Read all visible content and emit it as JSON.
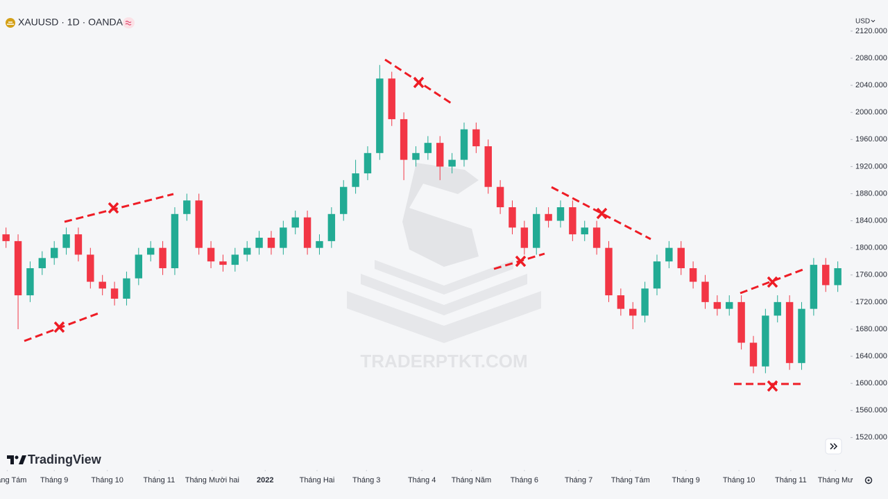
{
  "chart_data": {
    "type": "candlestick",
    "title": "XAUUSD · 1D · OANDA",
    "currency": "USD",
    "brand": "TradingView",
    "watermark": "TRADERPTKT.COM",
    "up_color": "#22ab94",
    "down_color": "#f23645",
    "x": [
      0,
      1,
      2,
      3,
      4,
      5,
      6,
      7,
      8,
      9,
      10,
      11,
      12,
      13,
      14,
      15,
      16,
      17,
      18,
      19,
      20,
      21,
      22,
      23,
      24,
      25,
      26,
      27,
      28,
      29,
      30,
      31,
      32,
      33,
      34,
      35,
      36,
      37,
      38,
      39,
      40,
      41,
      42,
      43,
      44,
      45,
      46,
      47,
      48,
      49,
      50,
      51,
      52,
      53,
      54,
      55,
      56,
      57,
      58,
      59,
      60,
      61,
      62,
      63,
      64,
      65,
      66,
      67,
      68,
      69
    ],
    "open": [
      1820,
      1810,
      1730,
      1770,
      1785,
      1800,
      1820,
      1790,
      1750,
      1740,
      1725,
      1755,
      1790,
      1800,
      1770,
      1850,
      1870,
      1800,
      1780,
      1775,
      1790,
      1800,
      1815,
      1800,
      1830,
      1845,
      1800,
      1810,
      1850,
      1890,
      1910,
      1940,
      2050,
      1990,
      1930,
      1940,
      1955,
      1920,
      1930,
      1975,
      1950,
      1890,
      1860,
      1830,
      1800,
      1850,
      1840,
      1860,
      1820,
      1830,
      1800,
      1730,
      1710,
      1700,
      1740,
      1780,
      1800,
      1770,
      1750,
      1720,
      1710,
      1720,
      1660,
      1625,
      1700,
      1720,
      1630,
      1710,
      1775,
      1745
    ],
    "high": [
      1830,
      1820,
      1780,
      1795,
      1810,
      1830,
      1830,
      1800,
      1760,
      1750,
      1765,
      1800,
      1810,
      1810,
      1860,
      1880,
      1880,
      1810,
      1790,
      1800,
      1810,
      1825,
      1825,
      1840,
      1855,
      1855,
      1820,
      1860,
      1900,
      1930,
      1950,
      2070,
      2060,
      2000,
      1950,
      1965,
      1965,
      1940,
      1985,
      1985,
      1960,
      1900,
      1870,
      1840,
      1860,
      1860,
      1870,
      1870,
      1840,
      1840,
      1810,
      1740,
      1720,
      1750,
      1790,
      1810,
      1810,
      1780,
      1760,
      1730,
      1730,
      1730,
      1670,
      1710,
      1730,
      1730,
      1720,
      1785,
      1785,
      1780
    ],
    "low": [
      1800,
      1680,
      1720,
      1760,
      1775,
      1790,
      1780,
      1740,
      1730,
      1715,
      1715,
      1745,
      1780,
      1760,
      1760,
      1840,
      1790,
      1770,
      1765,
      1765,
      1780,
      1790,
      1790,
      1790,
      1820,
      1790,
      1790,
      1800,
      1840,
      1880,
      1900,
      1930,
      1980,
      1900,
      1920,
      1930,
      1900,
      1910,
      1920,
      1940,
      1880,
      1850,
      1820,
      1790,
      1790,
      1830,
      1830,
      1810,
      1810,
      1790,
      1720,
      1700,
      1680,
      1690,
      1730,
      1770,
      1760,
      1740,
      1710,
      1700,
      1700,
      1650,
      1615,
      1615,
      1690,
      1620,
      1620,
      1700,
      1735,
      1735
    ],
    "close": [
      1810,
      1730,
      1770,
      1785,
      1800,
      1820,
      1790,
      1750,
      1740,
      1725,
      1755,
      1790,
      1800,
      1770,
      1850,
      1870,
      1800,
      1780,
      1775,
      1790,
      1800,
      1815,
      1800,
      1830,
      1845,
      1800,
      1810,
      1850,
      1890,
      1910,
      1940,
      2050,
      1990,
      1930,
      1940,
      1955,
      1920,
      1930,
      1975,
      1950,
      1890,
      1860,
      1830,
      1800,
      1850,
      1840,
      1860,
      1820,
      1830,
      1800,
      1730,
      1710,
      1700,
      1740,
      1780,
      1800,
      1770,
      1750,
      1720,
      1710,
      1720,
      1660,
      1625,
      1700,
      1720,
      1630,
      1710,
      1775,
      1745,
      1770
    ],
    "xlim": [
      -0.5,
      70
    ],
    "xticks": [
      {
        "value": 0.1,
        "label": "Tháng Tám"
      },
      {
        "value": 4.0,
        "label": "Tháng 9"
      },
      {
        "value": 8.4,
        "label": "Tháng 10"
      },
      {
        "value": 12.7,
        "label": "Tháng 11"
      },
      {
        "value": 17.1,
        "label": "Tháng Mười hai"
      },
      {
        "value": 21.5,
        "label": "2022"
      },
      {
        "value": 25.8,
        "label": "Tháng Hai"
      },
      {
        "value": 29.9,
        "label": "Tháng 3"
      },
      {
        "value": 34.5,
        "label": "Tháng 4"
      },
      {
        "value": 38.6,
        "label": "Tháng Năm"
      },
      {
        "value": 43.0,
        "label": "Tháng 6"
      },
      {
        "value": 47.5,
        "label": "Tháng 7"
      },
      {
        "value": 51.8,
        "label": "Tháng Tám"
      },
      {
        "value": 56.4,
        "label": "Tháng 9"
      },
      {
        "value": 60.8,
        "label": "Tháng 10"
      },
      {
        "value": 65.1,
        "label": "Tháng 11"
      },
      {
        "value": 68.8,
        "label": "Tháng Mư"
      }
    ],
    "ylim": [
      1505,
      2125
    ],
    "yticks": [
      {
        "value": 1520,
        "label": "1520.000"
      },
      {
        "value": 1560,
        "label": "1560.000"
      },
      {
        "value": 1600,
        "label": "1600.000"
      },
      {
        "value": 1640,
        "label": "1640.000"
      },
      {
        "value": 1680,
        "label": "1680.000"
      },
      {
        "value": 1720,
        "label": "1720.000"
      },
      {
        "value": 1760,
        "label": "1760.000"
      },
      {
        "value": 1800,
        "label": "1800.000"
      },
      {
        "value": 1840,
        "label": "1840.000"
      },
      {
        "value": 1880,
        "label": "1880.000"
      },
      {
        "value": 1920,
        "label": "1920.000"
      },
      {
        "value": 1960,
        "label": "1960.000"
      },
      {
        "value": 2000,
        "label": "2000.000"
      },
      {
        "value": 2040,
        "label": "2040.000"
      },
      {
        "value": 2080,
        "label": "2080.000"
      },
      {
        "value": 2120,
        "label": "2120.000"
      }
    ]
  }
}
